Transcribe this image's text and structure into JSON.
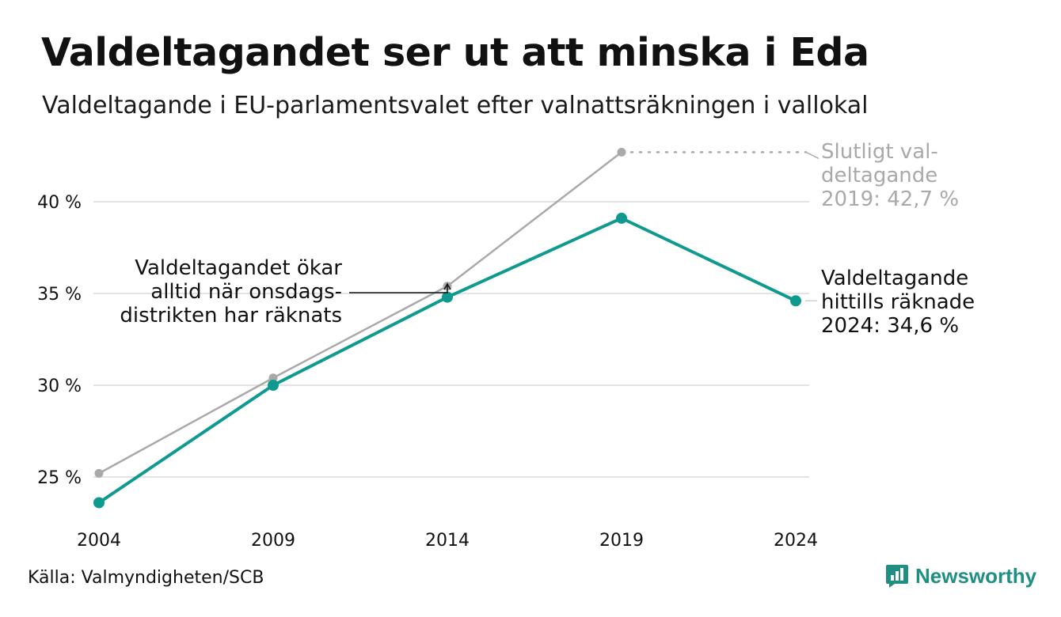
{
  "header": {
    "title": "Valdeltagandet ser ut att minska i Eda",
    "subtitle": "Valdeltagande i EU-parlamentsvalet efter valnattsräkningen i vallokal"
  },
  "footer": {
    "source": "Källa: Valmyndigheten/SCB",
    "brand": "Newsworthy",
    "brand_icon": "newsworthy-logo-icon"
  },
  "colors": {
    "main": "#0f9a8f",
    "final": "#a9a9a9",
    "grid": "#e3e3e3",
    "text": "#111111",
    "brand": "#1f8f84"
  },
  "chart_data": {
    "type": "line",
    "x": [
      2004,
      2009,
      2014,
      2019,
      2024
    ],
    "x_tick_labels": [
      "2004",
      "2009",
      "2014",
      "2019",
      "2024"
    ],
    "y_ticks": [
      25,
      30,
      35,
      40
    ],
    "y_tick_labels": [
      "25 %",
      "30 %",
      "35 %",
      "40 %"
    ],
    "ylim": [
      23,
      43
    ],
    "grid": true,
    "series": [
      {
        "key": "election_night",
        "x": [
          2004,
          2009,
          2014,
          2019,
          2024
        ],
        "values": [
          23.6,
          30.0,
          34.8,
          39.1,
          34.6
        ]
      },
      {
        "key": "final",
        "x": [
          2004,
          2009,
          2014,
          2019
        ],
        "values": [
          25.2,
          30.4,
          35.4,
          42.7
        ]
      }
    ],
    "annotations": {
      "final_2019": [
        "Slutligt val-",
        "deltagande",
        "2019: 42,7 %"
      ],
      "current_2024": [
        "Valdeltagande",
        "hittills räknade",
        "2024: 34,6 %"
      ],
      "wednesday": [
        "Valdeltagandet ökar",
        "alltid när onsdags-",
        "distrikten har räknats"
      ]
    }
  }
}
